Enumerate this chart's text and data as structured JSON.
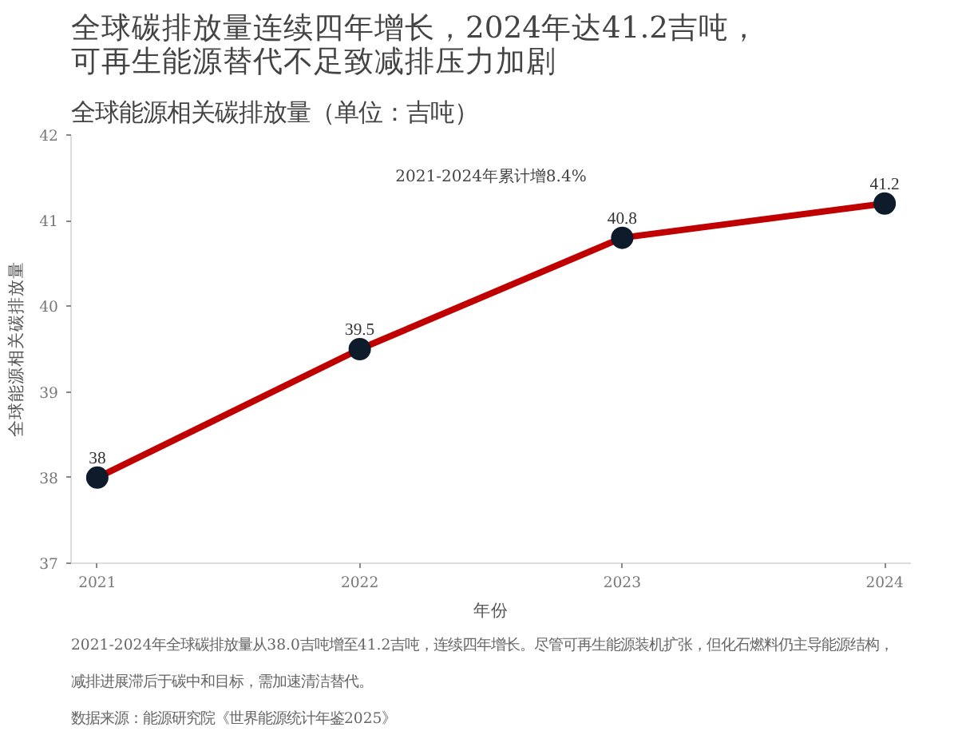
{
  "chart_data": {
    "type": "line",
    "title": "全球碳排放量连续四年增长，2024年达41.2吉吨，可再生能源替代不足致减排压力加剧",
    "subtitle": "全球能源相关碳排放量（单位：吉吨）",
    "xlabel": "年份",
    "ylabel": "全球能源相关碳排放量",
    "x": [
      2021,
      2022,
      2023,
      2024
    ],
    "series": [
      {
        "color": "#c00000",
        "values": [
          38,
          39.5,
          40.8,
          41.2
        ]
      }
    ],
    "xlim": [
      2020.9,
      2024.1
    ],
    "xticks": [
      2021,
      2022,
      2023,
      2024
    ],
    "ylim": [
      37,
      42
    ],
    "yticks": [
      37,
      38,
      39,
      40,
      41,
      42
    ],
    "grid": false,
    "marker": "circle",
    "line_style": "solid",
    "data_labels": true,
    "annotations": [
      "2021-2024年累计增8.4%",
      "2021-2024年全球碳排放量从38.0吉吨增至41.2吉吨，连续四年增长。尽管可再生能源装机扩张，但化石燃料仍主导能源结构，",
      "减排进展滞后于碳中和目标，需加速清洁替代。",
      "数据来源：能源研究院《世界能源统计年鉴2025》"
    ]
  }
}
